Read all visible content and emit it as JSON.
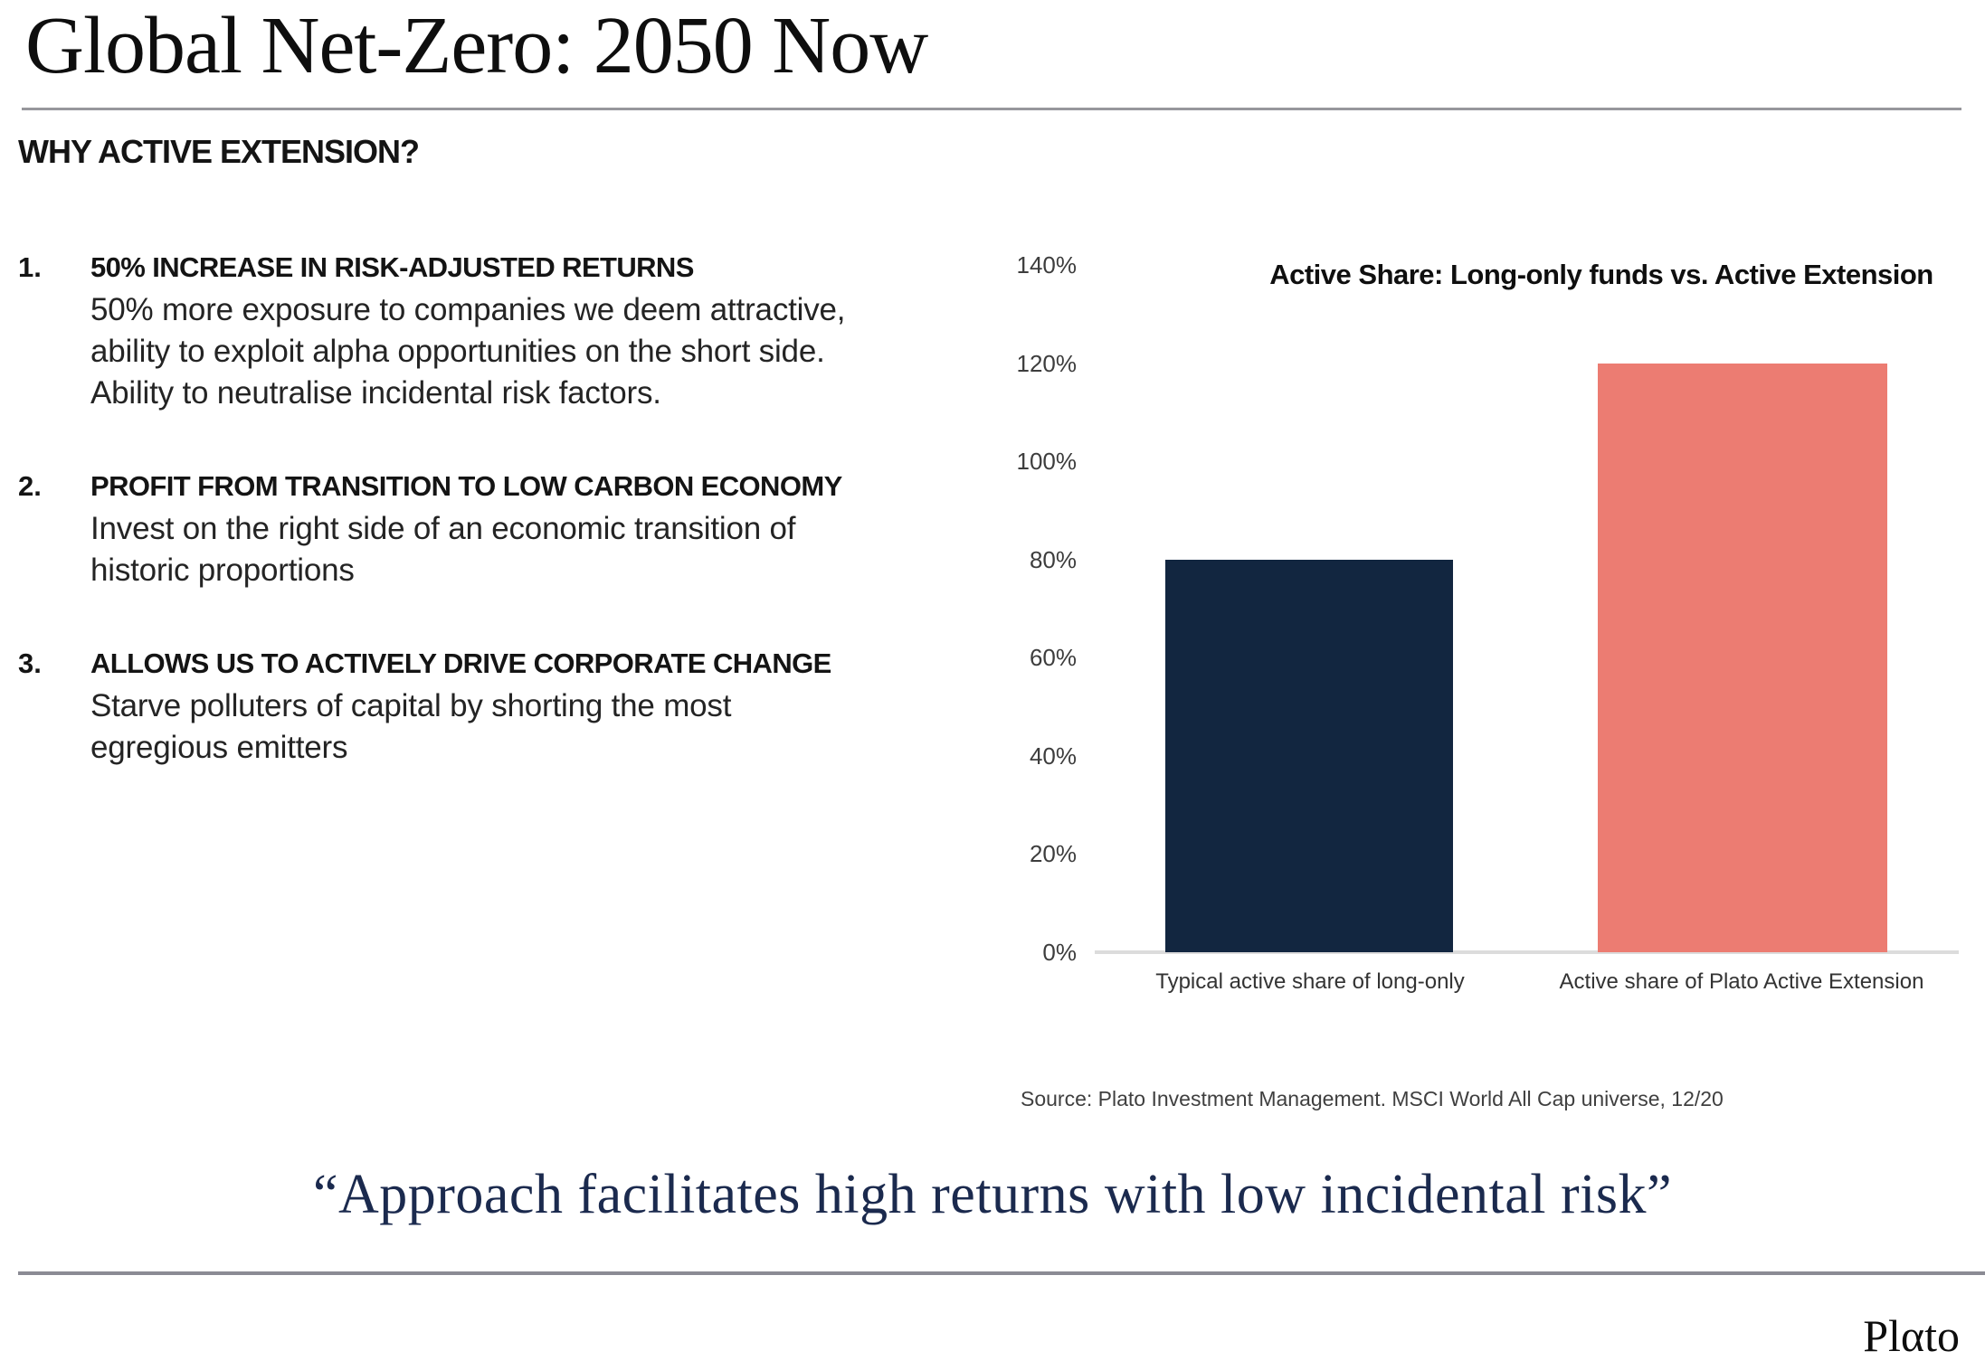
{
  "header": {
    "title": "Global Net-Zero: 2050 Now",
    "section": "WHY ACTIVE EXTENSION?"
  },
  "points": [
    {
      "number": "1.",
      "title": "50% INCREASE IN RISK-ADJUSTED RETURNS",
      "body": "50% more exposure to companies we deem attractive,\nability to exploit alpha opportunities on the short side.\nAbility to neutralise incidental risk factors."
    },
    {
      "number": "2.",
      "title": "PROFIT FROM TRANSITION TO LOW CARBON ECONOMY",
      "body": "Invest on the right side of an economic transition of\nhistoric proportions"
    },
    {
      "number": "3.",
      "title": "ALLOWS US TO ACTIVELY DRIVE CORPORATE CHANGE",
      "body": "Starve polluters of capital by shorting the most\negregious emitters"
    }
  ],
  "chart_data": {
    "type": "bar",
    "title": "Active Share: Long-only funds vs. Active Extension",
    "categories": [
      "Typical active share of long-only",
      "Active share of Plato Active Extension"
    ],
    "values": [
      80,
      120
    ],
    "unit": "%",
    "ylim": [
      0,
      140
    ],
    "yticks": [
      0,
      20,
      40,
      60,
      80,
      100,
      120,
      140
    ],
    "grid": false,
    "legend": "none",
    "bar_colors": [
      "#122640",
      "#ec7c72"
    ],
    "axis_line_color": "#dcdcdc",
    "source": "Source: Plato Investment Management. MSCI World All Cap universe, 12/20"
  },
  "quote": {
    "text": "“Approach facilitates high returns with low incidental risk”"
  },
  "footer": {
    "logo": "Plαto"
  }
}
